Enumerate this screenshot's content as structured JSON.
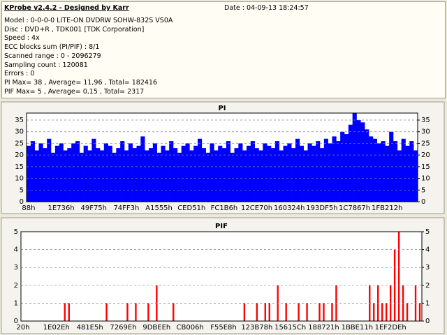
{
  "header": {
    "title": "KProbe v2.4.2 - Designed by Karr",
    "date": "Date : 04-09-13 18:24:57",
    "lines": [
      "Model : 0-0-0-0 LITE-ON DVDRW SOHW-832S  VS0A",
      "Disc : DVD+R , TDK001 [TDK Corporation]",
      "Speed : 4x",
      "ECC blocks sum (PI/PIF) : 8/1",
      "Scanned range : 0 - 2096279",
      "Sampling count : 120081",
      "Errors : 0",
      "PI Max= 38 , Average= 11,96 , Total= 182416",
      "PIF Max= 5 , Average= 0,15 , Total= 2317"
    ]
  },
  "chart_data": [
    {
      "type": "bar",
      "title": "PI",
      "color": "#0000ff",
      "grid": true,
      "ylim": [
        0,
        38
      ],
      "yticks": [
        0,
        5,
        10,
        15,
        20,
        25,
        30,
        35
      ],
      "y2lim": [
        0,
        38
      ],
      "y2ticks": [
        0,
        5,
        10,
        15,
        20,
        25,
        30,
        35
      ],
      "categories": [
        "88h",
        null,
        null,
        null,
        null,
        null,
        null,
        null,
        "1E736h",
        null,
        null,
        null,
        null,
        null,
        null,
        null,
        "49F75h",
        null,
        null,
        null,
        null,
        null,
        null,
        null,
        "74FF3h",
        null,
        null,
        null,
        null,
        null,
        null,
        null,
        "A1555h",
        null,
        null,
        null,
        null,
        null,
        null,
        null,
        "CED51h",
        null,
        null,
        null,
        null,
        null,
        null,
        null,
        "FC1B6h",
        null,
        null,
        null,
        null,
        null,
        null,
        null,
        "12CE70h",
        null,
        null,
        null,
        null,
        null,
        null,
        null,
        "160324h",
        null,
        null,
        null,
        null,
        null,
        null,
        null,
        "193DF5h",
        null,
        null,
        null,
        null,
        null,
        null,
        null,
        "1C7867h",
        null,
        null,
        null,
        null,
        null,
        null,
        null,
        "1FB212h",
        null,
        null,
        null,
        null,
        null,
        null,
        null
      ],
      "values": [
        24,
        26,
        22,
        25,
        23,
        27,
        21,
        24,
        25,
        22,
        23,
        25,
        26,
        21,
        24,
        22,
        27,
        23,
        22,
        25,
        24,
        21,
        23,
        26,
        22,
        25,
        23,
        24,
        28,
        22,
        23,
        25,
        21,
        24,
        22,
        26,
        23,
        21,
        24,
        25,
        22,
        24,
        27,
        23,
        21,
        25,
        22,
        24,
        23,
        26,
        21,
        23,
        25,
        22,
        24,
        26,
        23,
        22,
        25,
        24,
        23,
        26,
        22,
        24,
        25,
        23,
        27,
        24,
        22,
        25,
        24,
        26,
        23,
        27,
        25,
        28,
        26,
        30,
        29,
        33,
        38,
        35,
        34,
        31,
        28,
        27,
        25,
        26,
        24,
        30,
        26,
        22,
        27,
        24,
        26,
        22
      ]
    },
    {
      "type": "bar",
      "title": "PIF",
      "color": "#ff0000",
      "grid": true,
      "ylim": [
        0,
        5
      ],
      "yticks": [
        0,
        1,
        2,
        3,
        4,
        5
      ],
      "y2lim": [
        0,
        5
      ],
      "y2ticks": [
        0,
        1,
        2,
        3,
        4,
        5
      ],
      "categories": [
        "20h",
        null,
        null,
        null,
        null,
        null,
        null,
        null,
        "1E02Eh",
        null,
        null,
        null,
        null,
        null,
        null,
        null,
        "481E5h",
        null,
        null,
        null,
        null,
        null,
        null,
        null,
        "7269Eh",
        null,
        null,
        null,
        null,
        null,
        null,
        null,
        "9DBEEh",
        null,
        null,
        null,
        null,
        null,
        null,
        null,
        "CB006h",
        null,
        null,
        null,
        null,
        null,
        null,
        null,
        "F55E8h",
        null,
        null,
        null,
        null,
        null,
        null,
        null,
        "123B78h",
        null,
        null,
        null,
        null,
        null,
        null,
        null,
        "15615Ch",
        null,
        null,
        null,
        null,
        null,
        null,
        null,
        "188721h",
        null,
        null,
        null,
        null,
        null,
        null,
        null,
        "1BBE11h",
        null,
        null,
        null,
        null,
        null,
        null,
        null,
        "1EF2DEh",
        null,
        null,
        null,
        null,
        null,
        null,
        null
      ],
      "values": [
        0,
        0,
        0,
        0,
        0,
        0,
        0,
        0,
        0,
        0,
        1,
        1,
        0,
        0,
        0,
        0,
        0,
        0,
        0,
        0,
        1,
        0,
        0,
        0,
        0,
        1,
        0,
        1,
        0,
        0,
        1,
        0,
        2,
        0,
        0,
        0,
        1,
        0,
        0,
        0,
        0,
        0,
        0,
        0,
        0,
        0,
        0,
        0,
        0,
        0,
        0,
        0,
        0,
        1,
        0,
        0,
        1,
        0,
        1,
        1,
        0,
        2,
        0,
        1,
        0,
        0,
        1,
        0,
        1,
        0,
        0,
        1,
        1,
        0,
        1,
        2,
        0,
        0,
        0,
        0,
        0,
        0,
        0,
        2,
        1,
        2,
        1,
        1,
        2,
        4,
        5,
        2,
        1,
        0,
        2,
        1
      ]
    }
  ]
}
